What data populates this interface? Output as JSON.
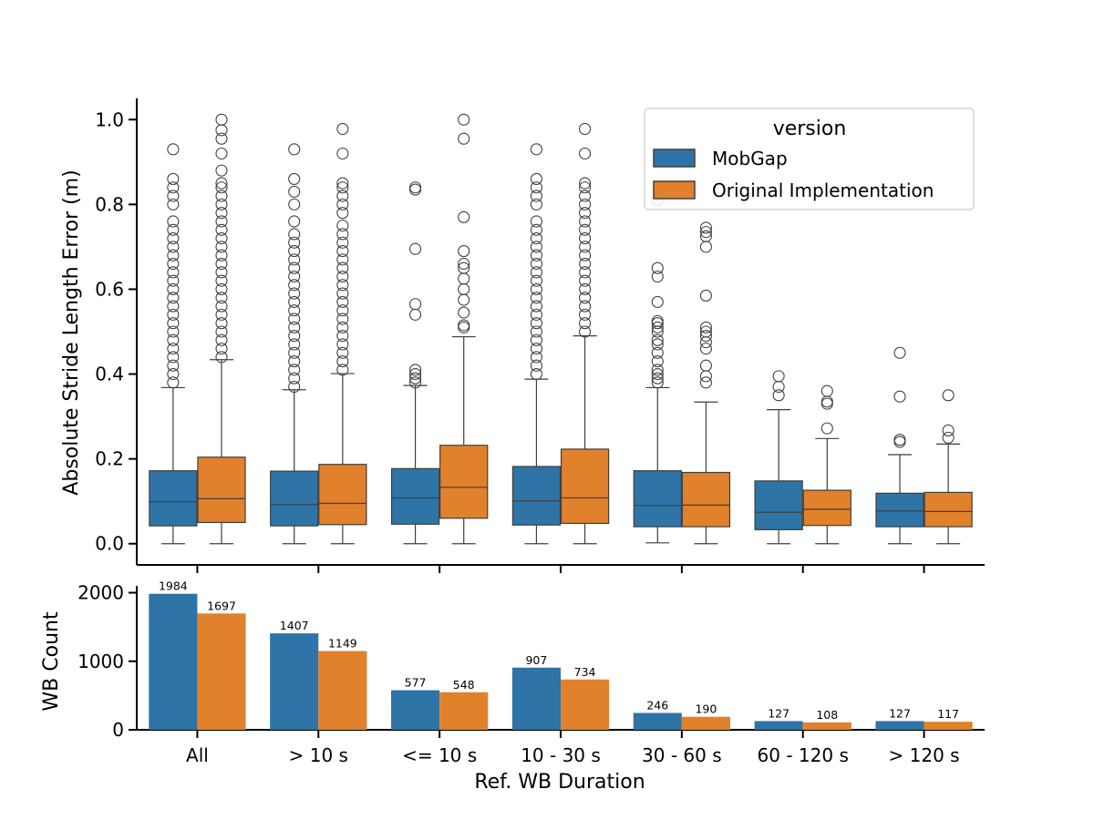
{
  "chart_data": [
    {
      "type": "box",
      "ylabel": "Absolute Stride Length Error (m)",
      "ylim": [
        -0.05,
        1.05
      ],
      "yticks": [
        "0.0",
        "0.2",
        "0.4",
        "0.6",
        "0.8",
        "1.0"
      ],
      "categories": [
        "All",
        "> 10 s",
        "<= 10 s",
        "10 - 30 s",
        "30 - 60 s",
        "60 - 120 s",
        "> 120 s"
      ],
      "legend": {
        "title": "version",
        "position": "top-right"
      },
      "series": [
        {
          "name": "MobGap",
          "color": "#2f74a6",
          "boxes": [
            {
              "whislo": 0.0,
              "q1": 0.042,
              "med": 0.099,
              "q3": 0.172,
              "whishi": 0.368,
              "fliers": [
                0.38,
                0.4,
                0.42,
                0.44,
                0.46,
                0.48,
                0.5,
                0.52,
                0.54,
                0.56,
                0.58,
                0.6,
                0.62,
                0.64,
                0.66,
                0.68,
                0.7,
                0.72,
                0.74,
                0.76,
                0.8,
                0.82,
                0.84,
                0.86,
                0.93
              ]
            },
            {
              "whislo": 0.0,
              "q1": 0.042,
              "med": 0.092,
              "q3": 0.171,
              "whishi": 0.363,
              "fliers": [
                0.37,
                0.39,
                0.41,
                0.43,
                0.45,
                0.47,
                0.49,
                0.51,
                0.53,
                0.55,
                0.57,
                0.59,
                0.61,
                0.63,
                0.65,
                0.67,
                0.69,
                0.71,
                0.73,
                0.76,
                0.8,
                0.83,
                0.86,
                0.93
              ]
            },
            {
              "whislo": 0.0,
              "q1": 0.046,
              "med": 0.108,
              "q3": 0.177,
              "whishi": 0.373,
              "fliers": [
                0.38,
                0.39,
                0.4,
                0.41,
                0.54,
                0.565,
                0.695,
                0.835,
                0.84
              ]
            },
            {
              "whislo": 0.0,
              "q1": 0.044,
              "med": 0.101,
              "q3": 0.182,
              "whishi": 0.388,
              "fliers": [
                0.4,
                0.42,
                0.44,
                0.46,
                0.48,
                0.5,
                0.52,
                0.54,
                0.56,
                0.58,
                0.6,
                0.62,
                0.64,
                0.66,
                0.68,
                0.7,
                0.72,
                0.74,
                0.76,
                0.8,
                0.82,
                0.84,
                0.86,
                0.93
              ]
            },
            {
              "whislo": 0.002,
              "q1": 0.04,
              "med": 0.09,
              "q3": 0.172,
              "whishi": 0.368,
              "fliers": [
                0.38,
                0.39,
                0.4,
                0.41,
                0.43,
                0.45,
                0.47,
                0.48,
                0.5,
                0.51,
                0.52,
                0.525,
                0.57,
                0.63,
                0.65,
                0.81
              ]
            },
            {
              "whislo": 0.0,
              "q1": 0.033,
              "med": 0.074,
              "q3": 0.148,
              "whishi": 0.316,
              "fliers": [
                0.35,
                0.37,
                0.395
              ]
            },
            {
              "whislo": 0.0,
              "q1": 0.04,
              "med": 0.077,
              "q3": 0.119,
              "whishi": 0.21,
              "fliers": [
                0.24,
                0.245,
                0.347,
                0.45
              ]
            }
          ]
        },
        {
          "name": "Original Implementation",
          "color": "#e1812c",
          "boxes": [
            {
              "whislo": 0.0,
              "q1": 0.05,
              "med": 0.106,
              "q3": 0.204,
              "whishi": 0.434,
              "fliers": [
                0.44,
                0.46,
                0.48,
                0.5,
                0.52,
                0.54,
                0.56,
                0.58,
                0.6,
                0.62,
                0.64,
                0.66,
                0.68,
                0.7,
                0.72,
                0.74,
                0.76,
                0.78,
                0.8,
                0.82,
                0.84,
                0.85,
                0.88,
                0.92,
                0.955,
                0.975,
                1.0
              ]
            },
            {
              "whislo": 0.0,
              "q1": 0.045,
              "med": 0.095,
              "q3": 0.187,
              "whishi": 0.401,
              "fliers": [
                0.41,
                0.43,
                0.45,
                0.47,
                0.49,
                0.51,
                0.53,
                0.55,
                0.57,
                0.59,
                0.61,
                0.63,
                0.65,
                0.67,
                0.69,
                0.71,
                0.73,
                0.75,
                0.78,
                0.8,
                0.82,
                0.84,
                0.85,
                0.92,
                0.978
              ]
            },
            {
              "whislo": 0.0,
              "q1": 0.06,
              "med": 0.133,
              "q3": 0.232,
              "whishi": 0.488,
              "fliers": [
                0.51,
                0.515,
                0.545,
                0.575,
                0.6,
                0.625,
                0.65,
                0.66,
                0.69,
                0.77,
                0.955,
                1.0
              ]
            },
            {
              "whislo": 0.0,
              "q1": 0.048,
              "med": 0.108,
              "q3": 0.223,
              "whishi": 0.49,
              "fliers": [
                0.5,
                0.52,
                0.54,
                0.56,
                0.58,
                0.6,
                0.62,
                0.64,
                0.66,
                0.68,
                0.7,
                0.72,
                0.74,
                0.76,
                0.78,
                0.8,
                0.82,
                0.84,
                0.85,
                0.92,
                0.978
              ]
            },
            {
              "whislo": 0.0,
              "q1": 0.04,
              "med": 0.091,
              "q3": 0.168,
              "whishi": 0.334,
              "fliers": [
                0.38,
                0.395,
                0.42,
                0.46,
                0.475,
                0.49,
                0.5,
                0.51,
                0.585,
                0.7,
                0.725,
                0.735,
                0.745
              ]
            },
            {
              "whislo": 0.0,
              "q1": 0.043,
              "med": 0.081,
              "q3": 0.126,
              "whishi": 0.248,
              "fliers": [
                0.272,
                0.33,
                0.335,
                0.36
              ]
            },
            {
              "whislo": 0.0,
              "q1": 0.04,
              "med": 0.076,
              "q3": 0.121,
              "whishi": 0.235,
              "fliers": [
                0.25,
                0.267,
                0.35
              ]
            }
          ]
        }
      ]
    },
    {
      "type": "bar",
      "xlabel": "Ref. WB Duration",
      "ylabel": "WB Count",
      "ylim": [
        0,
        2100
      ],
      "yticks": [
        "0",
        "1000",
        "2000"
      ],
      "categories": [
        "All",
        "> 10 s",
        "<= 10 s",
        "10 - 30 s",
        "30 - 60 s",
        "60 - 120 s",
        "> 120 s"
      ],
      "series": [
        {
          "name": "MobGap",
          "color": "#2f74a6",
          "values": [
            1984,
            1407,
            577,
            907,
            246,
            127,
            127
          ]
        },
        {
          "name": "Original Implementation",
          "color": "#e1812c",
          "values": [
            1697,
            1149,
            548,
            734,
            190,
            108,
            117
          ]
        }
      ]
    }
  ]
}
